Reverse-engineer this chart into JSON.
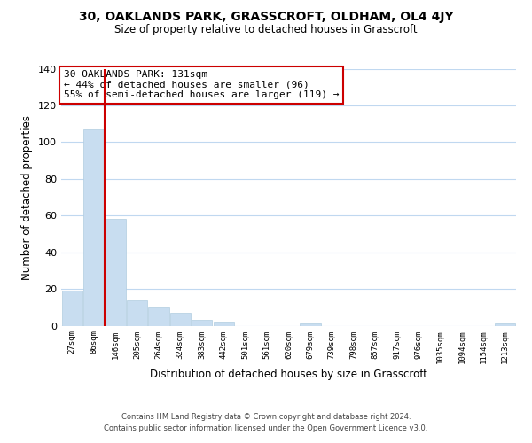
{
  "title": "30, OAKLANDS PARK, GRASSCROFT, OLDHAM, OL4 4JY",
  "subtitle": "Size of property relative to detached houses in Grasscroft",
  "xlabel": "Distribution of detached houses by size in Grasscroft",
  "ylabel": "Number of detached properties",
  "bar_color": "#c8ddf0",
  "bar_edge_color": "#b0cce0",
  "vline_color": "#cc0000",
  "vline_x": 2,
  "annotation_title": "30 OAKLANDS PARK: 131sqm",
  "annotation_line1": "← 44% of detached houses are smaller (96)",
  "annotation_line2": "55% of semi-detached houses are larger (119) →",
  "bin_labels": [
    "27sqm",
    "86sqm",
    "146sqm",
    "205sqm",
    "264sqm",
    "324sqm",
    "383sqm",
    "442sqm",
    "501sqm",
    "561sqm",
    "620sqm",
    "679sqm",
    "739sqm",
    "798sqm",
    "857sqm",
    "917sqm",
    "976sqm",
    "1035sqm",
    "1094sqm",
    "1154sqm",
    "1213sqm"
  ],
  "bar_heights": [
    19,
    107,
    58,
    14,
    10,
    7,
    3,
    2,
    0,
    0,
    0,
    1,
    0,
    0,
    0,
    0,
    0,
    0,
    0,
    0,
    1
  ],
  "ylim": [
    0,
    140
  ],
  "yticks": [
    0,
    20,
    40,
    60,
    80,
    100,
    120,
    140
  ],
  "footer_line1": "Contains HM Land Registry data © Crown copyright and database right 2024.",
  "footer_line2": "Contains public sector information licensed under the Open Government Licence v3.0.",
  "background_color": "#ffffff",
  "grid_color": "#c0d8f0"
}
